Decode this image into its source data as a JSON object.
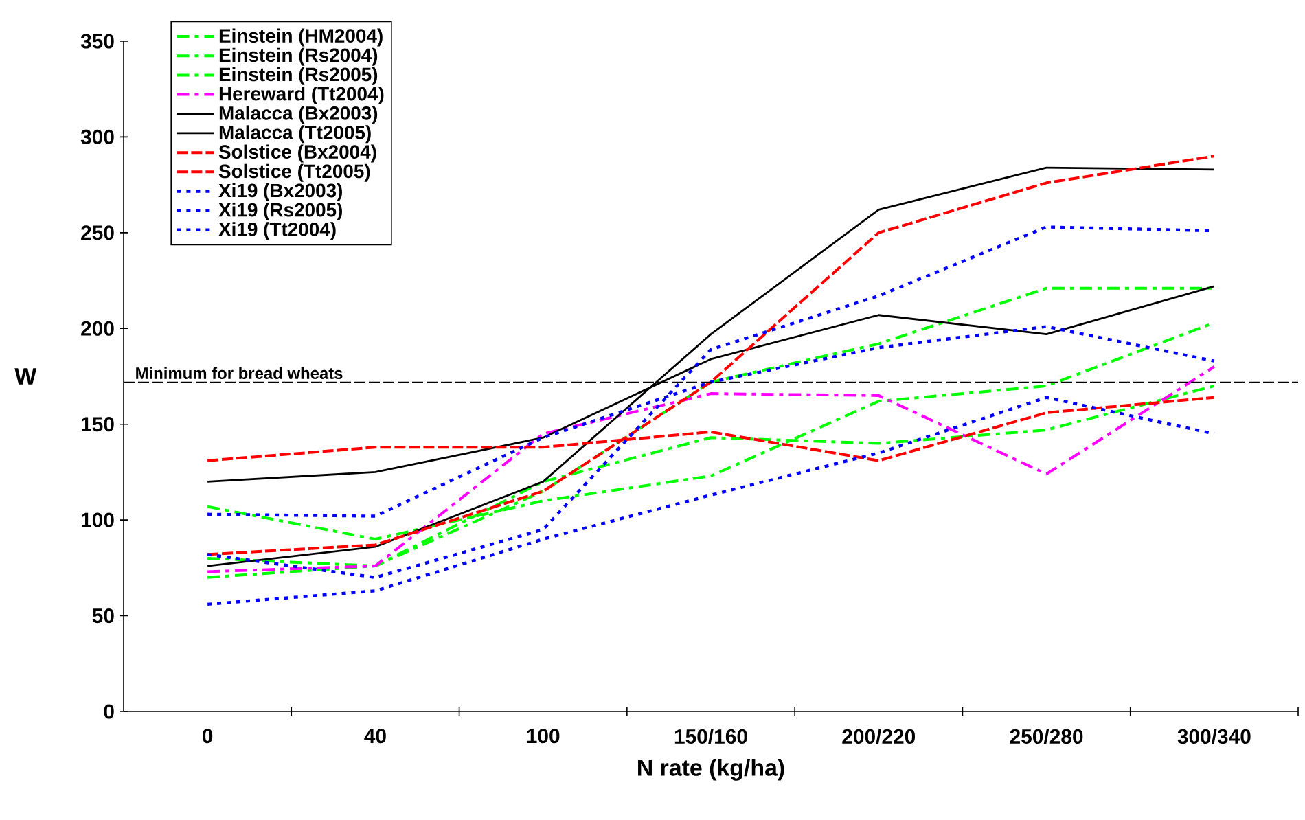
{
  "chart_data": {
    "type": "line",
    "xlabel": "N rate (kg/ha)",
    "ylabel": "W",
    "categories": [
      "0",
      "40",
      "100",
      "150/160",
      "200/220",
      "250/280",
      "300/340"
    ],
    "ylim": [
      0,
      350
    ],
    "yticks": [
      0,
      50,
      100,
      150,
      200,
      250,
      300,
      350
    ],
    "grid": false,
    "legend": "top left",
    "marker": "none",
    "series": [
      {
        "name": "Einstein (HM2004)",
        "color": "#00ff00",
        "line_style": "dashdot",
        "values": [
          70,
          76,
          115,
          172,
          192,
          221,
          221
        ]
      },
      {
        "name": "Einstein (Rs2004)",
        "color": "#00ff00",
        "line_style": "dashdot",
        "values": [
          80,
          76,
          120,
          143,
          140,
          147,
          170
        ]
      },
      {
        "name": "Einstein (Rs2005)",
        "color": "#00ff00",
        "line_style": "dashdot",
        "values": [
          107,
          90,
          110,
          123,
          162,
          170,
          203
        ]
      },
      {
        "name": "Hereward (Tt2004)",
        "color": "#ff00ff",
        "line_style": "dashdot",
        "values": [
          73,
          76,
          145,
          166,
          165,
          124,
          180
        ]
      },
      {
        "name": "Malacca (Bx2003)",
        "color": "#000000",
        "line_style": "solid",
        "values": [
          120,
          125,
          143,
          184,
          207,
          197,
          222
        ]
      },
      {
        "name": "Malacca (Tt2005)",
        "color": "#000000",
        "line_style": "solid",
        "values": [
          76,
          86,
          120,
          197,
          262,
          284,
          283
        ]
      },
      {
        "name": "Solstice (Bx2004)",
        "color": "#ff0000",
        "line_style": "dashed",
        "values": [
          131,
          138,
          138,
          146,
          131,
          156,
          164
        ]
      },
      {
        "name": "Solstice (Tt2005)",
        "color": "#ff0000",
        "line_style": "dashed",
        "values": [
          82,
          87,
          115,
          172,
          250,
          276,
          290
        ]
      },
      {
        "name": "Xi19 (Bx2003)",
        "color": "#0000ff",
        "line_style": "dotted",
        "values": [
          103,
          102,
          143,
          172,
          190,
          201,
          183
        ]
      },
      {
        "name": "Xi19 (Rs2005)",
        "color": "#0000ff",
        "line_style": "dotted",
        "values": [
          82,
          70,
          95,
          189,
          217,
          253,
          251
        ]
      },
      {
        "name": "Xi19 (Tt2004)",
        "color": "#0000ff",
        "line_style": "dotted",
        "values": [
          56,
          63,
          90,
          113,
          135,
          164,
          145
        ]
      }
    ],
    "ref_lines": [
      {
        "axis": "y",
        "value": 172,
        "label": "Minimum for bread wheats",
        "color": "#000000",
        "line_style": "dashed"
      }
    ]
  }
}
